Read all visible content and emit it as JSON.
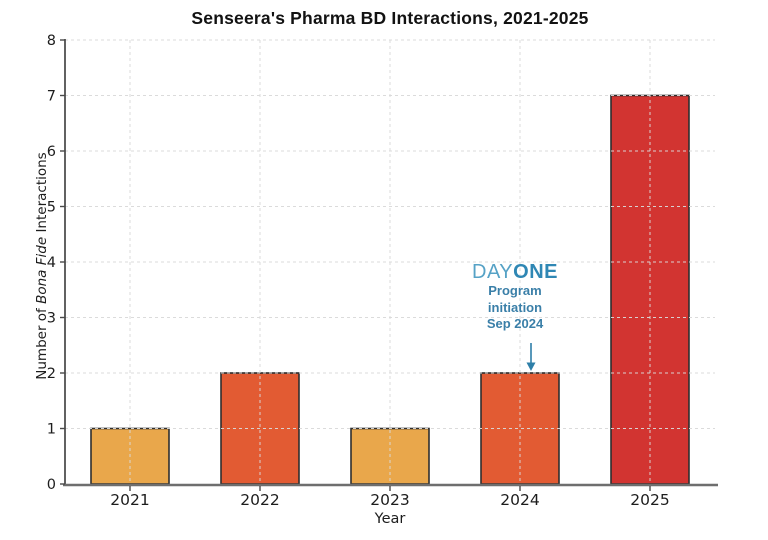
{
  "page": {
    "background": "#ffffff"
  },
  "chart_data": {
    "type": "bar",
    "title": "Senseera's Pharma BD Interactions, 2021-2025",
    "xlabel": "Year",
    "ylabel": "Number of Bona Fide Interactions",
    "ylabel_parts": [
      "Number of ",
      "Bona Fide",
      " Interactions"
    ],
    "categories": [
      "2021",
      "2022",
      "2023",
      "2024",
      "2025"
    ],
    "values": [
      1,
      2,
      1,
      2,
      7
    ],
    "bar_colors": [
      "#E9A74B",
      "#E25B33",
      "#E9A74B",
      "#E25B33",
      "#D23431"
    ],
    "bar_edge_color": "#2E2E2E",
    "ylim": [
      0,
      8
    ],
    "yticks": [
      0,
      1,
      2,
      3,
      4,
      5,
      6,
      7,
      8
    ],
    "grid": {
      "show": true,
      "style": "dashed",
      "color": "#D9D9D9"
    },
    "legend": "none",
    "axis": {
      "spine_color": "#3A3A3A",
      "baseline_color": "#6E6E6E",
      "tick_color": "#4A4A4A",
      "tick_label_color": "#1d1d1d"
    },
    "annotation": {
      "brand": {
        "day": "DAY",
        "one": "ONE"
      },
      "day_color": "#56A2C6",
      "one_color": "#2F87B4",
      "lines": [
        "Program",
        "initiation",
        "Sep 2024"
      ],
      "text_color": "#3A7FA8",
      "arrow_color": "#2E7FA8",
      "target_category": "2024",
      "target_value": 2
    }
  }
}
